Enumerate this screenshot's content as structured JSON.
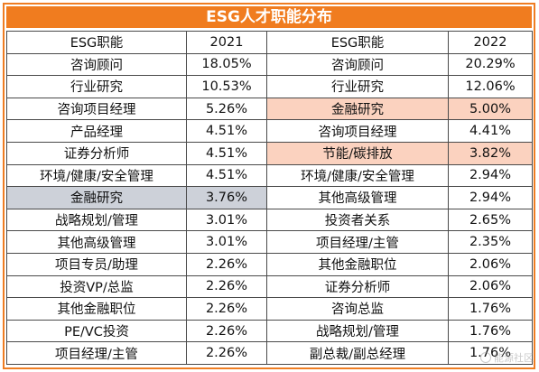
{
  "title": "ESG人才职能分布",
  "headers": {
    "func_2021": "ESG职能",
    "year_2021": "2021",
    "func_2022": "ESG职能",
    "year_2022": "2022"
  },
  "rows": [
    {
      "f2021": "咨询顾问",
      "v2021": "18.05%",
      "f2022": "咨询顾问",
      "v2022": "20.29%"
    },
    {
      "f2021": "行业研究",
      "v2021": "10.53%",
      "f2022": "行业研究",
      "v2022": "12.06%"
    },
    {
      "f2021": "咨询项目经理",
      "v2021": "5.26%",
      "f2022": "金融研究",
      "v2022": "5.00%"
    },
    {
      "f2021": "产品经理",
      "v2021": "4.51%",
      "f2022": "咨询项目经理",
      "v2022": "4.41%"
    },
    {
      "f2021": "证券分析师",
      "v2021": "4.51%",
      "f2022": "节能/碳排放",
      "v2022": "3.82%"
    },
    {
      "f2021": "环境/健康/安全管理",
      "v2021": "4.51%",
      "f2022": "环境/健康/安全管理",
      "v2022": "2.94%"
    },
    {
      "f2021": "金融研究",
      "v2021": "3.76%",
      "f2022": "其他高级管理",
      "v2022": "2.94%"
    },
    {
      "f2021": "战略规划/管理",
      "v2021": "3.01%",
      "f2022": "投资者关系",
      "v2022": "2.65%"
    },
    {
      "f2021": "其他高级管理",
      "v2021": "3.01%",
      "f2022": "项目经理/主管",
      "v2022": "2.35%"
    },
    {
      "f2021": "项目专员/助理",
      "v2021": "2.26%",
      "f2022": "其他金融职位",
      "v2022": "2.06%"
    },
    {
      "f2021": "投资VP/总监",
      "v2021": "2.26%",
      "f2022": "证券分析师",
      "v2022": "2.06%"
    },
    {
      "f2021": "其他金融职位",
      "v2021": "2.26%",
      "f2022": "咨询总监",
      "v2022": "1.76%"
    },
    {
      "f2021": "PE/VC投资",
      "v2021": "2.26%",
      "f2022": "战略规划/管理",
      "v2022": "1.76%"
    },
    {
      "f2021": "项目经理/主管",
      "v2021": "2.26%",
      "f2022": "副总裁/副总经理",
      "v2022": "1.76%"
    }
  ],
  "highlight_colors": {
    "gray": "#cdd1d9",
    "peach": "#fbd2bf",
    "title": "#f07c1f"
  },
  "highlights": {
    "left_gray_rows": [
      6
    ],
    "right_peach_rows": [
      2,
      4
    ]
  },
  "watermark": {
    "icon": "wechat-bubble-icon",
    "text": "能源社区"
  }
}
